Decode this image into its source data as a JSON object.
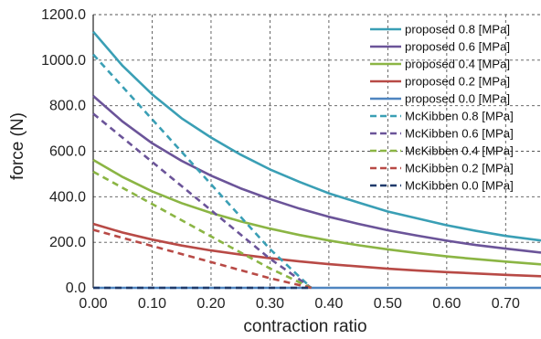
{
  "chart_data": {
    "type": "line",
    "xlabel": "contraction ratio",
    "ylabel": "force (N)",
    "xlim": [
      0,
      0.76
    ],
    "ylim": [
      0,
      1200
    ],
    "xticks": [
      "0.00",
      "0.10",
      "0.20",
      "0.30",
      "0.40",
      "0.50",
      "0.60",
      "0.70"
    ],
    "xtick_values": [
      0,
      0.1,
      0.2,
      0.3,
      0.4,
      0.5,
      0.6,
      0.7
    ],
    "yticks": [
      "0.0",
      "200.0",
      "400.0",
      "600.0",
      "800.0",
      "1000.0",
      "1200.0"
    ],
    "ytick_values": [
      0,
      200,
      400,
      600,
      800,
      1000,
      1200
    ],
    "grid": true,
    "legend_position": "top-right",
    "series": [
      {
        "name": "proposed 0.8  [MPa]",
        "color": "#3a9fb5",
        "style": "solid",
        "x": [
          0.0,
          0.05,
          0.1,
          0.15,
          0.2,
          0.25,
          0.3,
          0.35,
          0.4,
          0.45,
          0.5,
          0.55,
          0.6,
          0.65,
          0.7,
          0.76
        ],
        "y": [
          1125,
          975,
          850,
          745,
          660,
          585,
          520,
          465,
          415,
          375,
          335,
          305,
          275,
          250,
          228,
          208
        ]
      },
      {
        "name": "proposed 0.6  [MPa]",
        "color": "#6b5499",
        "style": "solid",
        "x": [
          0.0,
          0.05,
          0.1,
          0.15,
          0.2,
          0.25,
          0.3,
          0.35,
          0.4,
          0.45,
          0.5,
          0.55,
          0.6,
          0.65,
          0.7,
          0.76
        ],
        "y": [
          843,
          730,
          635,
          558,
          493,
          437,
          390,
          348,
          312,
          281,
          253,
          229,
          207,
          188,
          172,
          155
        ]
      },
      {
        "name": "proposed 0.4  [MPa]",
        "color": "#8bb544",
        "style": "solid",
        "x": [
          0.0,
          0.05,
          0.1,
          0.15,
          0.2,
          0.25,
          0.3,
          0.35,
          0.4,
          0.45,
          0.5,
          0.55,
          0.6,
          0.65,
          0.7,
          0.76
        ],
        "y": [
          562,
          487,
          424,
          372,
          329,
          292,
          260,
          232,
          208,
          187,
          169,
          153,
          138,
          126,
          115,
          103
        ]
      },
      {
        "name": "proposed 0.2  [MPa]",
        "color": "#b84a46",
        "style": "solid",
        "x": [
          0.0,
          0.05,
          0.1,
          0.15,
          0.2,
          0.25,
          0.3,
          0.35,
          0.4,
          0.45,
          0.5,
          0.55,
          0.6,
          0.65,
          0.7,
          0.76
        ],
        "y": [
          281,
          243,
          212,
          186,
          164,
          146,
          130,
          116,
          104,
          94,
          84,
          76,
          69,
          63,
          57,
          51
        ]
      },
      {
        "name": "proposed 0.0  [MPa]",
        "color": "#4f85c0",
        "style": "solid",
        "x": [
          0.0,
          0.76
        ],
        "y": [
          0,
          0
        ]
      },
      {
        "name": "McKibben 0.8  [MPa]",
        "color": "#3a9fb5",
        "style": "dashed",
        "x": [
          0.0,
          0.1,
          0.2,
          0.3,
          0.37
        ],
        "y": [
          1025,
          740,
          455,
          170,
          0
        ]
      },
      {
        "name": "McKibben 0.6  [MPa]",
        "color": "#6b5499",
        "style": "dashed",
        "x": [
          0.0,
          0.1,
          0.2,
          0.3,
          0.37
        ],
        "y": [
          765,
          553,
          341,
          128,
          0
        ]
      },
      {
        "name": "McKibben 0.4  [MPa]",
        "color": "#8bb544",
        "style": "dashed",
        "x": [
          0.0,
          0.1,
          0.2,
          0.3,
          0.37
        ],
        "y": [
          510,
          368,
          226,
          85,
          0
        ]
      },
      {
        "name": "McKibben 0.2  [MPa]",
        "color": "#b84a46",
        "style": "dashed",
        "x": [
          0.0,
          0.1,
          0.2,
          0.3,
          0.37
        ],
        "y": [
          255,
          184,
          113,
          42,
          0
        ]
      },
      {
        "name": "McKibben 0.0  [MPa]",
        "color": "#1f3a6b",
        "style": "dashed",
        "x": [
          0.0,
          0.37
        ],
        "y": [
          0,
          0
        ]
      }
    ]
  }
}
